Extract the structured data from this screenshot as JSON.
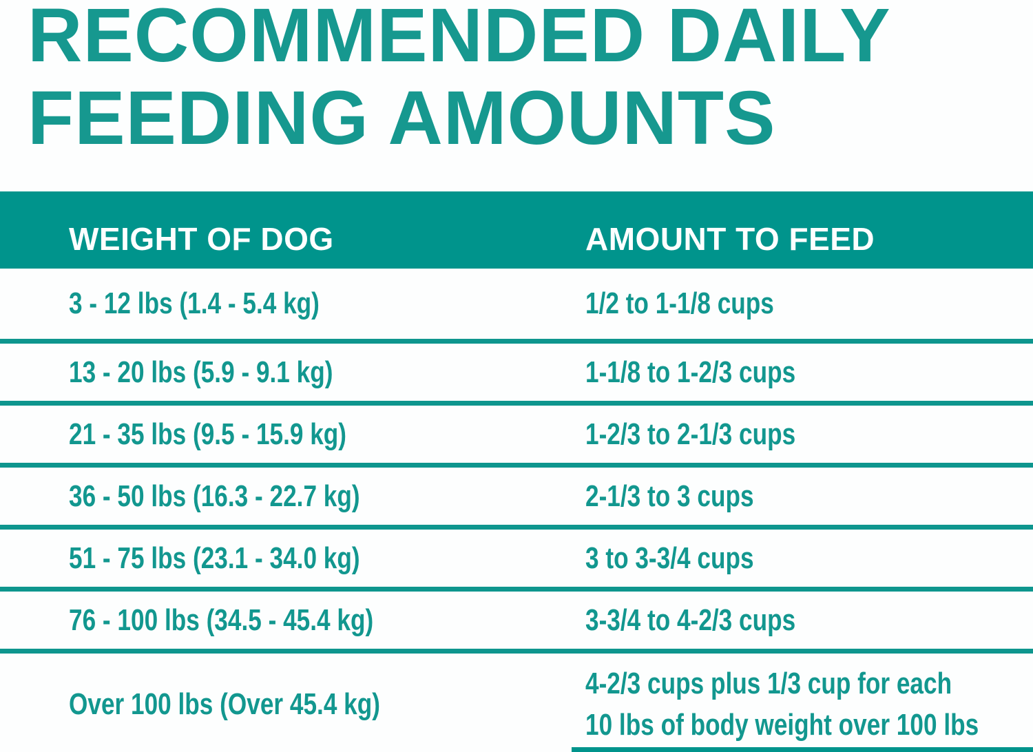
{
  "colors": {
    "teal_band": "#00948C",
    "teal_text": "#12978F",
    "header_text": "#FFFFFF",
    "background": "#FDFEFE"
  },
  "chart_data": {
    "type": "table",
    "title": "RECOMMENDED DAILY FEEDING AMOUNTS",
    "title_lines": [
      "RECOMMENDED DAILY",
      "FEEDING AMOUNTS"
    ],
    "columns": [
      "WEIGHT OF DOG",
      "AMOUNT TO FEED"
    ],
    "rows": [
      {
        "weight": "3 - 12 lbs (1.4 - 5.4 kg)",
        "amount_lines": [
          "1/2 to 1-1/8 cups"
        ]
      },
      {
        "weight": "13 - 20 lbs (5.9 - 9.1 kg)",
        "amount_lines": [
          "1-1/8 to 1-2/3 cups"
        ]
      },
      {
        "weight": "21 - 35 lbs (9.5 - 15.9 kg)",
        "amount_lines": [
          "1-2/3 to 2-1/3 cups"
        ]
      },
      {
        "weight": "36 - 50 lbs (16.3 - 22.7 kg)",
        "amount_lines": [
          "2-1/3 to 3 cups"
        ]
      },
      {
        "weight": "51 - 75 lbs (23.1 - 34.0 kg)",
        "amount_lines": [
          "3 to 3-3/4 cups"
        ]
      },
      {
        "weight": "76 - 100 lbs (34.5 - 45.4 kg)",
        "amount_lines": [
          "3-3/4 to 4-2/3 cups"
        ]
      },
      {
        "weight": "Over 100 lbs (Over 45.4 kg)",
        "amount_lines": [
          "4-2/3 cups plus 1/3 cup for each",
          "10 lbs of body weight over 100 lbs"
        ]
      }
    ]
  }
}
